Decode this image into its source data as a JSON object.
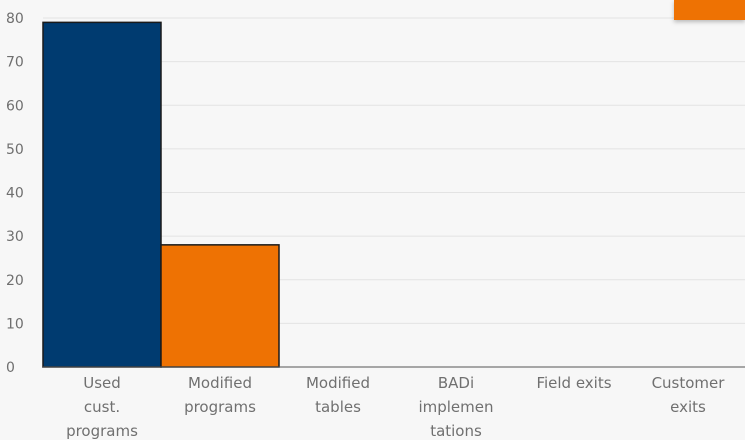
{
  "chart_data": {
    "type": "bar",
    "title": "",
    "xlabel": "",
    "ylabel": "",
    "ylim": [
      0,
      80
    ],
    "yticks": [
      "0",
      "10",
      "20",
      "30",
      "40",
      "50",
      "60",
      "70",
      "80"
    ],
    "grid": true,
    "categories": [
      [
        "Used",
        "cust.",
        "programs"
      ],
      [
        "Modified",
        "programs"
      ],
      [
        "Modified",
        "tables"
      ],
      [
        "BADi",
        "implemen",
        "tations"
      ],
      [
        "Field exits"
      ],
      [
        "Customer",
        "exits"
      ]
    ],
    "values": [
      79,
      28,
      0,
      0,
      0,
      0
    ],
    "colors": [
      "#003b70",
      "#ee7203",
      "#ee7203",
      "#ee7203",
      "#ee7203",
      "#ee7203"
    ]
  },
  "theme": {
    "background": "#f7f7f7",
    "grid_color": "#e3e3e3",
    "axis_color": "#555555",
    "text_color": "#707070",
    "accent": "#ee7203"
  }
}
